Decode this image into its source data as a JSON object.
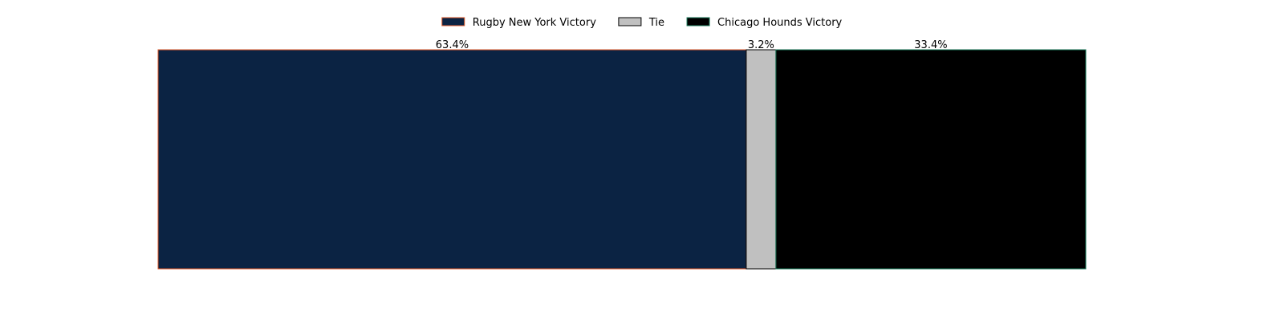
{
  "chart_data": {
    "type": "bar",
    "orientation": "horizontal-stacked",
    "categories": [
      ""
    ],
    "series": [
      {
        "name": "Rugby New York Victory",
        "values": [
          63.4
        ],
        "label": "63.4%",
        "color": "#0b2343",
        "edge": "#e05a28"
      },
      {
        "name": "Tie",
        "values": [
          3.2
        ],
        "label": "3.2%",
        "color": "#c0c0c0",
        "edge": "#000000"
      },
      {
        "name": "Chicago Hounds Victory",
        "values": [
          33.4
        ],
        "label": "33.4%",
        "color": "#000000",
        "edge": "#1a7a5a"
      }
    ],
    "xlim": [
      0,
      100
    ],
    "grid": false,
    "axes_visible": false,
    "legend_position": "top-center"
  }
}
